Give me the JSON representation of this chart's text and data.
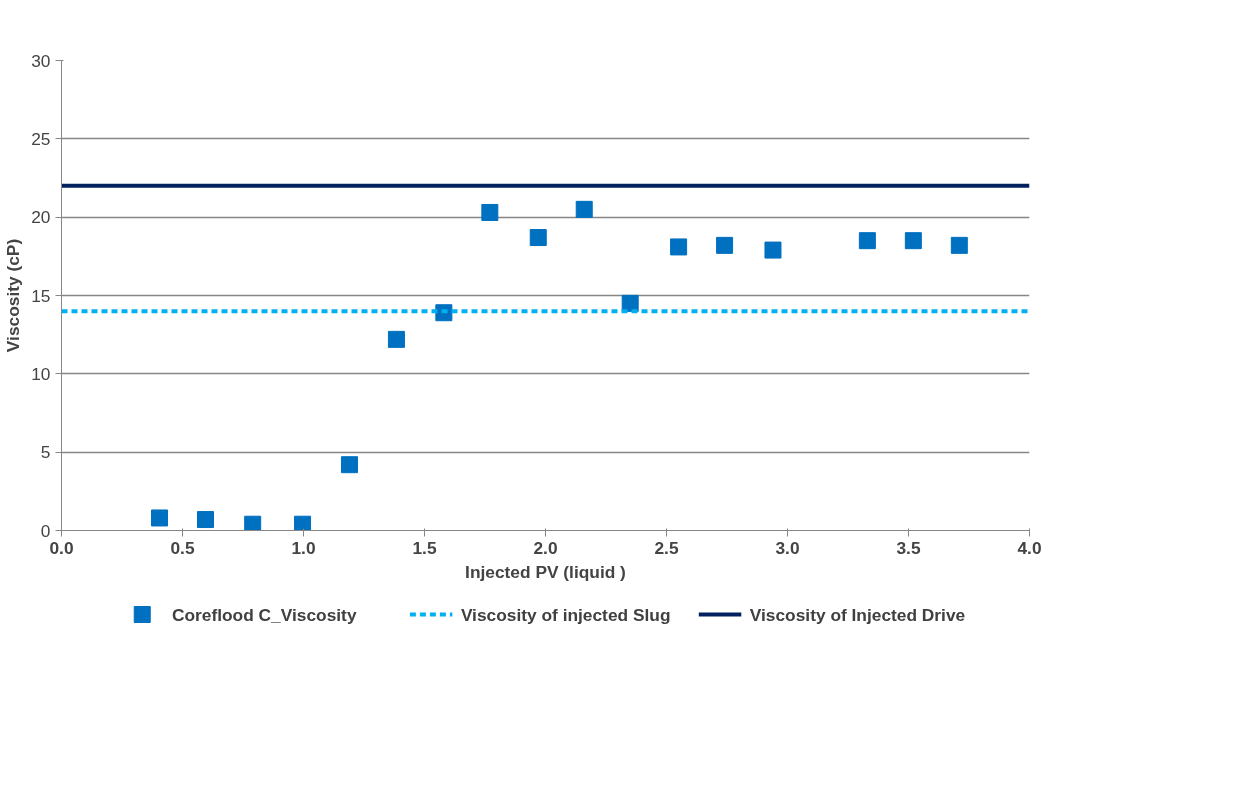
{
  "chart_data": {
    "type": "scatter",
    "xlabel": "Injected PV (liquid )",
    "ylabel": "Viscosity (cP)",
    "xlim": [
      0,
      4
    ],
    "ylim": [
      0,
      30
    ],
    "xticks": [
      {
        "value": 0,
        "label": "0.0"
      },
      {
        "value": 0.5,
        "label": "0.5"
      },
      {
        "value": 1,
        "label": "1.0"
      },
      {
        "value": 1.5,
        "label": "1.5"
      },
      {
        "value": 2,
        "label": "2.0"
      },
      {
        "value": 2.5,
        "label": "2.5"
      },
      {
        "value": 3,
        "label": "3.0"
      },
      {
        "value": 3.5,
        "label": "3.5"
      },
      {
        "value": 4,
        "label": "4.0"
      }
    ],
    "yticks": [
      0,
      5,
      10,
      15,
      20,
      25,
      30
    ],
    "grid": "y",
    "legend": "bottom",
    "series": [
      {
        "name": "Coreflood C_Viscosity",
        "type": "scatter",
        "marker": "square",
        "color": "#0070c0",
        "x": [
          0.405,
          0.595,
          0.79,
          0.996,
          1.19,
          1.384,
          1.58,
          1.77,
          1.97,
          2.16,
          2.35,
          2.55,
          2.74,
          2.94,
          3.33,
          3.52,
          3.71
        ],
        "values": [
          0.8,
          0.7,
          0.4,
          0.4,
          4.2,
          12.2,
          13.9,
          20.3,
          18.7,
          20.5,
          14.5,
          18.1,
          18.2,
          17.9,
          18.5,
          18.5,
          18.2
        ]
      },
      {
        "name": "Viscosity of injected Slug",
        "type": "line",
        "line_style": "dashed",
        "color": "#00b0f0",
        "x": [
          0,
          4
        ],
        "values": [
          14,
          14
        ]
      },
      {
        "name": "Viscosity of Injected Drive",
        "type": "line",
        "line_style": "solid",
        "color": "#002060",
        "x": [
          0,
          4
        ],
        "values": [
          22,
          22
        ]
      }
    ]
  }
}
